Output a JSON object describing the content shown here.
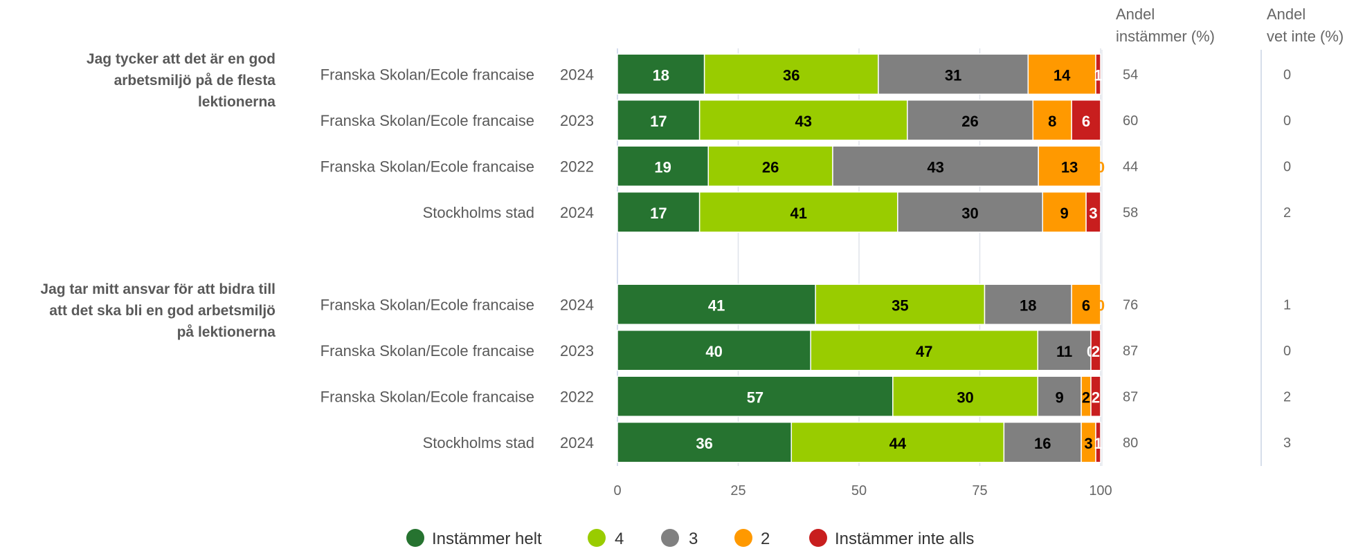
{
  "colors": {
    "Instämmer helt": "#267330",
    "4": "#99cc00",
    "3": "#808080",
    "2": "#ff9900",
    "Instämmer inte alls": "#c81e1e"
  },
  "columns": {
    "andel_instammer": [
      "Andel",
      "instämmer (%)"
    ],
    "andel_vet_inte": [
      "Andel",
      "vet inte (%)"
    ]
  },
  "chart_data": {
    "type": "bar",
    "orientation": "horizontal",
    "stacked": true,
    "xlim": [
      0,
      100
    ],
    "xticks": [
      0,
      25,
      50,
      75,
      100
    ],
    "grid": true,
    "legend": "bottom",
    "series_names": [
      "Instämmer helt",
      "4",
      "3",
      "2",
      "Instämmer inte alls"
    ],
    "groups": [
      {
        "question": [
          "Jag tycker att det är en god",
          "arbetsmiljö på de flesta",
          "lektionerna"
        ],
        "rows": [
          {
            "name": "Franska Skolan/Ecole francaise",
            "year": "2024",
            "values": [
              18,
              36,
              31,
              14,
              1
            ],
            "andel_instammer": 54,
            "andel_vet_inte": 0
          },
          {
            "name": "Franska Skolan/Ecole francaise",
            "year": "2023",
            "values": [
              17,
              43,
              26,
              8,
              6
            ],
            "andel_instammer": 60,
            "andel_vet_inte": 0
          },
          {
            "name": "Franska Skolan/Ecole francaise",
            "year": "2022",
            "values": [
              19,
              26,
              43,
              13,
              0
            ],
            "andel_instammer": 44,
            "andel_vet_inte": 0
          },
          {
            "name": "Stockholms stad",
            "year": "2024",
            "values": [
              17,
              41,
              30,
              9,
              3
            ],
            "andel_instammer": 58,
            "andel_vet_inte": 2
          }
        ]
      },
      {
        "question": [
          "Jag tar mitt ansvar för att bidra till",
          "att det ska bli en god arbetsmiljö",
          "på lektionerna"
        ],
        "rows": [
          {
            "name": "Franska Skolan/Ecole francaise",
            "year": "2024",
            "values": [
              41,
              35,
              18,
              6,
              0
            ],
            "andel_instammer": 76,
            "andel_vet_inte": 1
          },
          {
            "name": "Franska Skolan/Ecole francaise",
            "year": "2023",
            "values": [
              40,
              47,
              11,
              0,
              2
            ],
            "andel_instammer": 87,
            "andel_vet_inte": 0
          },
          {
            "name": "Franska Skolan/Ecole francaise",
            "year": "2022",
            "values": [
              57,
              30,
              9,
              2,
              2
            ],
            "andel_instammer": 87,
            "andel_vet_inte": 2
          },
          {
            "name": "Stockholms stad",
            "year": "2024",
            "values": [
              36,
              44,
              16,
              3,
              1
            ],
            "andel_instammer": 80,
            "andel_vet_inte": 3
          }
        ]
      }
    ]
  }
}
